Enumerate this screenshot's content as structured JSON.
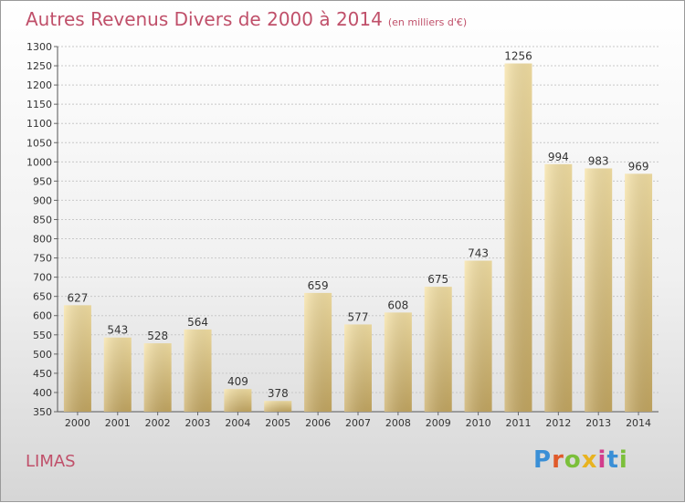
{
  "title": "Autres Revenus Divers de 2000 à 2014",
  "unit": "(en milliers d'€)",
  "city": "LIMAS",
  "logo": {
    "text": "Proxiti",
    "colors": [
      "#3a8fd6",
      "#e05a2a",
      "#7bbf3a",
      "#e8b320",
      "#d23c8c",
      "#3a8fd6",
      "#7bbf3a"
    ]
  },
  "colors": {
    "bar_light": "#f7e3a6",
    "bar_dark": "#c7aa63",
    "title": "#c0506a"
  },
  "chart_data": {
    "type": "bar",
    "categories": [
      "2000",
      "2001",
      "2002",
      "2003",
      "2004",
      "2005",
      "2006",
      "2007",
      "2008",
      "2009",
      "2010",
      "2011",
      "2012",
      "2013",
      "2014"
    ],
    "values": [
      627,
      543,
      528,
      564,
      409,
      378,
      659,
      577,
      608,
      675,
      743,
      1256,
      994,
      983,
      969
    ],
    "data_labels": [
      "627",
      "543",
      "528",
      "564",
      "409",
      "378",
      "659",
      "577",
      "608",
      "675",
      "743",
      "1256",
      "994",
      "983",
      "969"
    ],
    "ylim": [
      350,
      1300
    ],
    "yticks": [
      "350",
      "400",
      "450",
      "500",
      "550",
      "600",
      "650",
      "700",
      "750",
      "800",
      "850",
      "900",
      "950",
      "1000",
      "1050",
      "1100",
      "1150",
      "1200",
      "1250",
      "1300"
    ],
    "grid": true,
    "legend": "none"
  }
}
